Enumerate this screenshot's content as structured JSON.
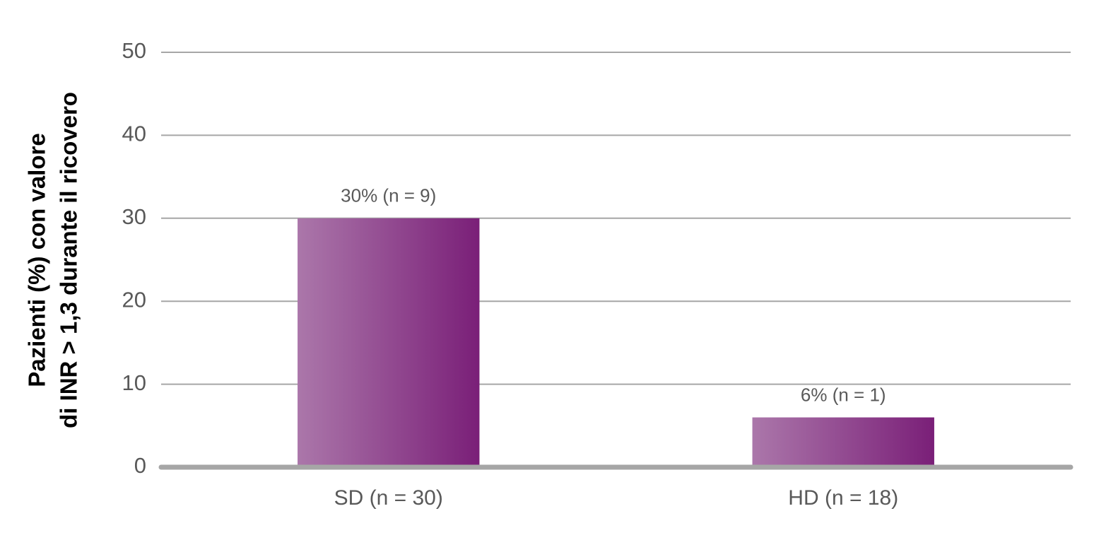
{
  "chart_data": {
    "type": "bar",
    "ylabel": [
      "Pazienti (%) con valore",
      "di INR > 1,3 durante il ricovero"
    ],
    "categories": [
      "SD (n = 30)",
      "HD (n = 18)"
    ],
    "values": [
      30,
      6
    ],
    "value_labels": [
      "30% (n = 9)",
      "6% (n = 1)"
    ],
    "gradient": [
      "#ab77aa",
      "#7a1f78"
    ],
    "ylim": [
      0,
      50
    ],
    "yticks": [
      0,
      10,
      20,
      30,
      40,
      50
    ],
    "grid": true
  }
}
